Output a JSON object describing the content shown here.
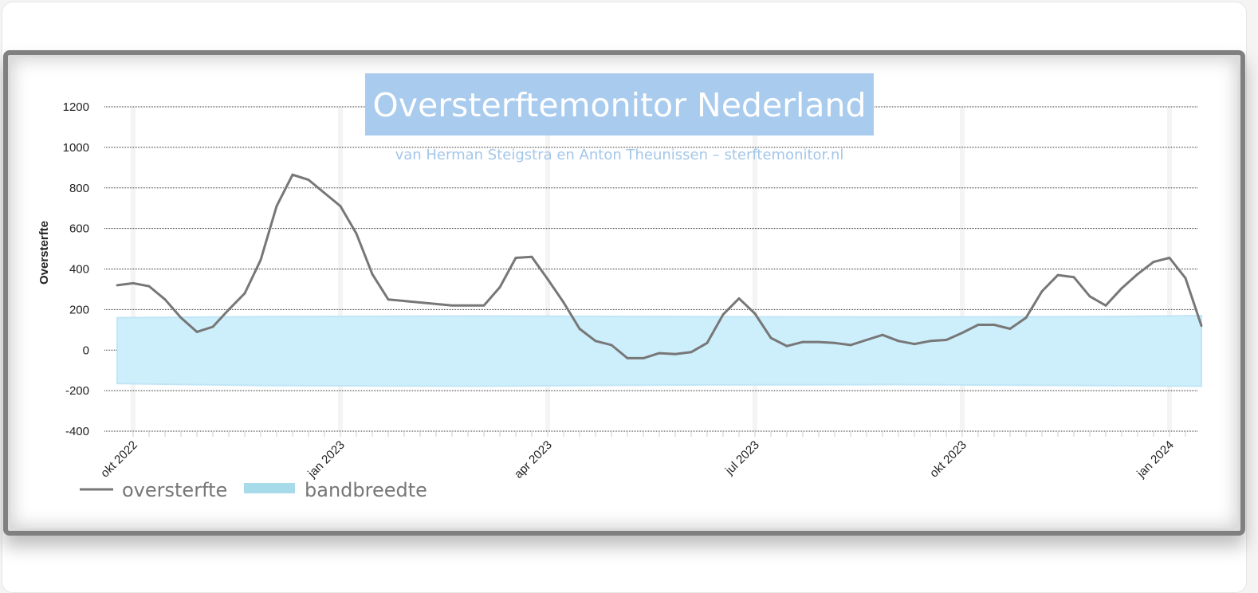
{
  "chart_data": {
    "type": "line",
    "title": "Oversterftemonitor Nederland",
    "subtitle": "van Herman Steigstra en Anton Theunissen – sterftemonitor.nl",
    "ylabel": "Oversterfte",
    "ylim": [
      -400,
      1200
    ],
    "yticks": [
      1200,
      1000,
      800,
      600,
      400,
      200,
      0,
      -200,
      -400
    ],
    "x_range": [
      "2022-09-26",
      "2024-01-08"
    ],
    "xticks": [
      {
        "label": "okt 2022",
        "date": "2022-10-03"
      },
      {
        "label": "jan 2023",
        "date": "2023-01-02"
      },
      {
        "label": "apr 2023",
        "date": "2023-04-03"
      },
      {
        "label": "jul 2023",
        "date": "2023-07-03"
      },
      {
        "label": "okt 2023",
        "date": "2023-10-02"
      },
      {
        "label": "jan 2024",
        "date": "2024-01-01"
      }
    ],
    "legend": {
      "position": "bottom-left",
      "entries": [
        "oversterfte",
        "bandbreedte"
      ]
    },
    "grid": true,
    "series": [
      {
        "name": "oversterfte",
        "color": "#777777",
        "points": [
          [
            "2022-09-26",
            320
          ],
          [
            "2022-10-03",
            330
          ],
          [
            "2022-10-10",
            315
          ],
          [
            "2022-10-17",
            250
          ],
          [
            "2022-10-24",
            160
          ],
          [
            "2022-10-31",
            90
          ],
          [
            "2022-11-07",
            115
          ],
          [
            "2022-11-14",
            200
          ],
          [
            "2022-11-21",
            280
          ],
          [
            "2022-11-28",
            445
          ],
          [
            "2022-12-05",
            710
          ],
          [
            "2022-12-12",
            865
          ],
          [
            "2022-12-19",
            840
          ],
          [
            "2022-12-26",
            775
          ],
          [
            "2023-01-02",
            710
          ],
          [
            "2023-01-09",
            575
          ],
          [
            "2023-01-16",
            375
          ],
          [
            "2023-01-23",
            250
          ],
          [
            "2023-02-06",
            235
          ],
          [
            "2023-02-20",
            220
          ],
          [
            "2023-03-06",
            220
          ],
          [
            "2023-03-13",
            310
          ],
          [
            "2023-03-20",
            455
          ],
          [
            "2023-03-27",
            460
          ],
          [
            "2023-04-03",
            350
          ],
          [
            "2023-04-10",
            235
          ],
          [
            "2023-04-17",
            105
          ],
          [
            "2023-04-24",
            45
          ],
          [
            "2023-05-01",
            25
          ],
          [
            "2023-05-08",
            -40
          ],
          [
            "2023-05-15",
            -40
          ],
          [
            "2023-05-22",
            -15
          ],
          [
            "2023-05-29",
            -20
          ],
          [
            "2023-06-05",
            -10
          ],
          [
            "2023-06-12",
            35
          ],
          [
            "2023-06-19",
            175
          ],
          [
            "2023-06-26",
            255
          ],
          [
            "2023-07-03",
            180
          ],
          [
            "2023-07-10",
            60
          ],
          [
            "2023-07-17",
            20
          ],
          [
            "2023-07-24",
            40
          ],
          [
            "2023-07-31",
            40
          ],
          [
            "2023-08-07",
            35
          ],
          [
            "2023-08-14",
            25
          ],
          [
            "2023-08-21",
            50
          ],
          [
            "2023-08-28",
            75
          ],
          [
            "2023-09-04",
            45
          ],
          [
            "2023-09-11",
            30
          ],
          [
            "2023-09-18",
            45
          ],
          [
            "2023-09-25",
            50
          ],
          [
            "2023-10-02",
            85
          ],
          [
            "2023-10-09",
            125
          ],
          [
            "2023-10-16",
            125
          ],
          [
            "2023-10-23",
            105
          ],
          [
            "2023-10-30",
            160
          ],
          [
            "2023-11-06",
            290
          ],
          [
            "2023-11-13",
            370
          ],
          [
            "2023-11-20",
            360
          ],
          [
            "2023-11-27",
            265
          ],
          [
            "2023-12-04",
            220
          ],
          [
            "2023-12-11",
            305
          ],
          [
            "2023-12-18",
            375
          ],
          [
            "2023-12-25",
            435
          ],
          [
            "2024-01-01",
            455
          ],
          [
            "2024-01-08",
            355
          ],
          [
            "2024-01-15",
            120
          ]
        ]
      },
      {
        "name": "bandbreedte",
        "type": "band",
        "color": "#cdeefb",
        "points": [
          [
            "2022-09-26",
            -165,
            160
          ],
          [
            "2022-12-01",
            -175,
            165
          ],
          [
            "2023-03-01",
            -178,
            168
          ],
          [
            "2023-06-01",
            -172,
            165
          ],
          [
            "2023-09-01",
            -170,
            163
          ],
          [
            "2023-12-01",
            -175,
            165
          ],
          [
            "2024-01-15",
            -178,
            170
          ]
        ]
      }
    ]
  }
}
